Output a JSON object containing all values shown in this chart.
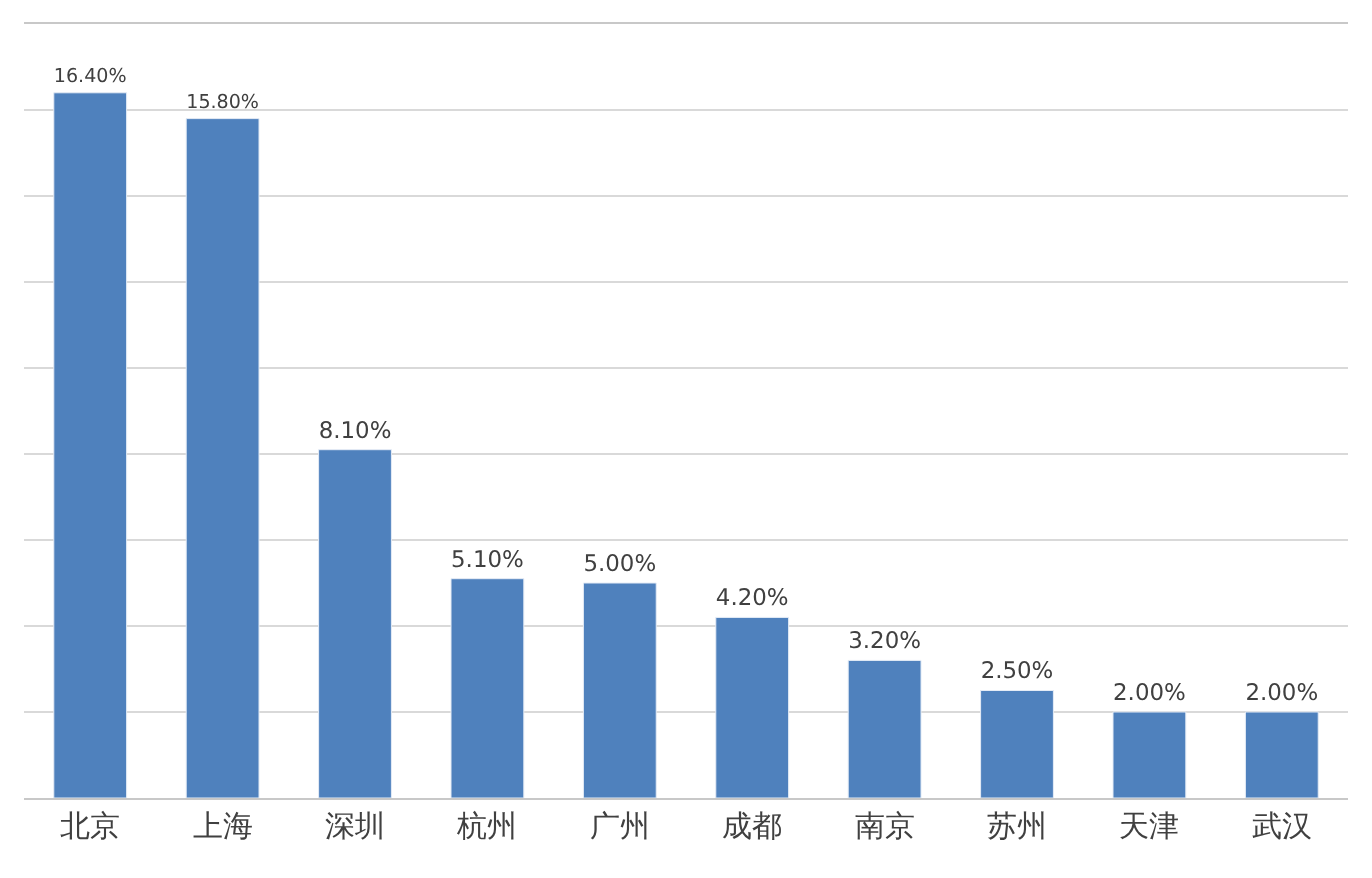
{
  "chart_data": {
    "type": "bar",
    "categories": [
      "北京",
      "上海",
      "深圳",
      "杭州",
      "广州",
      "成都",
      "南京",
      "苏州",
      "天津",
      "武汉"
    ],
    "values": [
      16.4,
      15.8,
      8.1,
      5.1,
      5.0,
      4.2,
      3.2,
      2.5,
      2.0,
      2.0
    ],
    "value_labels": [
      "16.40%",
      "15.80%",
      "8.10%",
      "5.10%",
      "5.00%",
      "4.20%",
      "3.20%",
      "2.50%",
      "2.00%",
      "2.00%"
    ],
    "color": "#4f81bd",
    "ylim": [
      0,
      18
    ],
    "yticks": [
      {
        "value": 0,
        "label": null
      },
      {
        "value": 2,
        "label": null
      },
      {
        "value": 4,
        "label": null
      },
      {
        "value": 6,
        "label": null
      },
      {
        "value": 8,
        "label": null
      },
      {
        "value": 10,
        "label": null
      },
      {
        "value": 12,
        "label": null
      },
      {
        "value": 14,
        "label": null
      },
      {
        "value": 16,
        "label": null
      },
      {
        "value": 18,
        "label": null
      }
    ],
    "grid": "y",
    "tick_labels": "x"
  }
}
